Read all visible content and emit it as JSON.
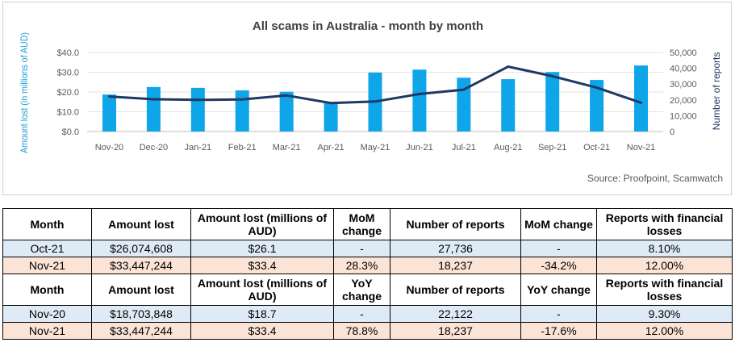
{
  "chart_data": {
    "type": "bar+line",
    "title": "All scams in Australia - month by month",
    "categories": [
      "Nov-20",
      "Dec-20",
      "Jan-21",
      "Feb-21",
      "Mar-21",
      "Apr-21",
      "May-21",
      "Jun-21",
      "Jul-21",
      "Aug-21",
      "Sep-21",
      "Oct-21",
      "Nov-21"
    ],
    "series": [
      {
        "type": "bar",
        "axis": "left",
        "values": [
          18.7,
          22.5,
          22.1,
          20.8,
          20.1,
          14.8,
          29.8,
          31.3,
          27.2,
          26.5,
          30.1,
          26.1,
          33.4
        ]
      },
      {
        "type": "line",
        "axis": "right",
        "values": [
          22122,
          20400,
          20000,
          20300,
          22800,
          18000,
          19000,
          23700,
          26500,
          41000,
          35000,
          27736,
          18237
        ]
      }
    ],
    "ylabel_left": "Amount lost (in millions of AUD)",
    "ylabel_right": "Number of reports",
    "ylim_left": [
      0,
      40
    ],
    "ylim_right": [
      0,
      50000
    ],
    "yticks_left": [
      "$0.0",
      "$10.0",
      "$20.0",
      "$30.0",
      "$40.0"
    ],
    "yticks_right": [
      "0",
      "10,000",
      "20,000",
      "30,000",
      "40,000",
      "50,000"
    ],
    "source": "Source: Proofpoint, Scamwatch",
    "grid": true,
    "colors": {
      "bar": "#0ea5e9",
      "line": "#1f3864",
      "left_axis_label": "#1b9bd7",
      "right_axis_label": "#1f3864"
    }
  },
  "table": {
    "header1": [
      "Month",
      "Amount lost",
      "Amount lost (millions of AUD)",
      "MoM change",
      "Number of reports",
      "MoM change",
      "Reports with financial losses"
    ],
    "rows1": [
      [
        "Oct-21",
        "$26,074,608",
        "$26.1",
        "-",
        "27,736",
        "-",
        "8.10%"
      ],
      [
        "Nov-21",
        "$33,447,244",
        "$33.4",
        "28.3%",
        "18,237",
        "-34.2%",
        "12.00%"
      ]
    ],
    "header2": [
      "Month",
      "Amount lost",
      "Amount lost (millions of AUD)",
      "YoY change",
      "Number of reports",
      "YoY change",
      "Reports with financial losses"
    ],
    "rows2": [
      [
        "Nov-20",
        "$18,703,848",
        "$18.7",
        "-",
        "22,122",
        "-",
        "9.30%"
      ],
      [
        "Nov-21",
        "$33,447,244",
        "$33.4",
        "78.8%",
        "18,237",
        "-17.6%",
        "12.00%"
      ]
    ],
    "colors": {
      "row_blue": "#deebf7",
      "row_peach": "#fbe3d6"
    }
  }
}
